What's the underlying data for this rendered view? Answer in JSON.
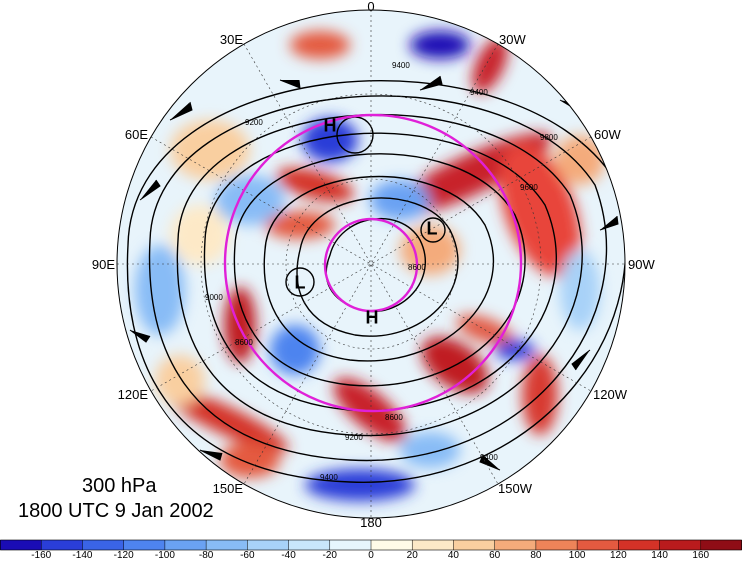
{
  "labels": {
    "level": "300 hPa",
    "time": "1800 UTC 9 Jan 2002"
  },
  "longitudes": {
    "top": "0",
    "right_top": "30W",
    "right_upper": "60W",
    "right": "90W",
    "right_lower": "120W",
    "right_bottom": "150W",
    "bottom": "180",
    "left_bottom": "150E",
    "left_lower": "120E",
    "left": "90E",
    "left_upper": "60E",
    "left_top": "30E"
  },
  "pressure_systems": {
    "h1": "H",
    "h2": "H",
    "l1": "L",
    "l2": "L"
  },
  "contour_values": [
    "9400",
    "9200",
    "9000",
    "8800",
    "8600",
    "9600",
    "9800"
  ],
  "colorbar": {
    "colors": [
      "#1a0cb5",
      "#2a3ed8",
      "#3a64e6",
      "#4e84ef",
      "#6aa2f3",
      "#88bcf6",
      "#a8d2f8",
      "#c8e6fb",
      "#e6f6fd",
      "#fffbe8",
      "#fde9c7",
      "#f9cfa0",
      "#f4ab7b",
      "#ee8459",
      "#e45a40",
      "#d43227",
      "#b91b1d",
      "#8f0d16"
    ],
    "ticks": [
      "-160",
      "-140",
      "-120",
      "-100",
      "-80",
      "-60",
      "-40",
      "-20",
      "0",
      "20",
      "40",
      "60",
      "80",
      "100",
      "120",
      "140",
      "160"
    ]
  },
  "overlay_circle_color": "#e020d8"
}
